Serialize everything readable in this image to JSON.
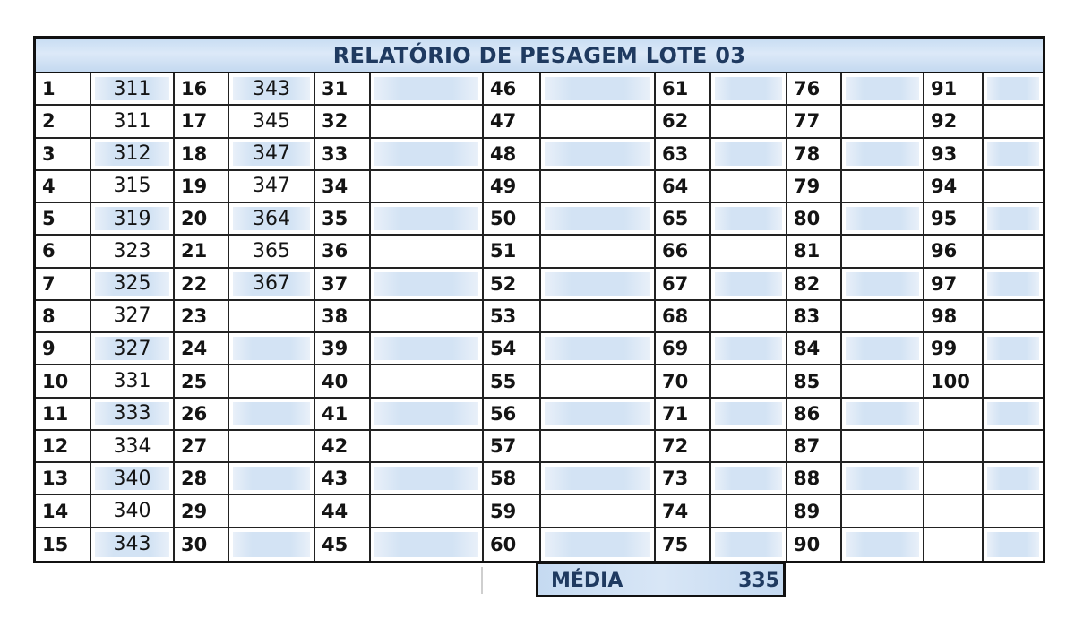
{
  "report": {
    "title": "RELATÓRIO DE PESAGEM LOTE 03",
    "columns_per_row": 7,
    "rows": 15,
    "entries": [
      {
        "n": "1",
        "w": "311"
      },
      {
        "n": "2",
        "w": "311"
      },
      {
        "n": "3",
        "w": "312"
      },
      {
        "n": "4",
        "w": "315"
      },
      {
        "n": "5",
        "w": "319"
      },
      {
        "n": "6",
        "w": "323"
      },
      {
        "n": "7",
        "w": "325"
      },
      {
        "n": "8",
        "w": "327"
      },
      {
        "n": "9",
        "w": "327"
      },
      {
        "n": "10",
        "w": "331"
      },
      {
        "n": "11",
        "w": "333"
      },
      {
        "n": "12",
        "w": "334"
      },
      {
        "n": "13",
        "w": "340"
      },
      {
        "n": "14",
        "w": "340"
      },
      {
        "n": "15",
        "w": "343"
      },
      {
        "n": "16",
        "w": "343"
      },
      {
        "n": "17",
        "w": "345"
      },
      {
        "n": "18",
        "w": "347"
      },
      {
        "n": "19",
        "w": "347"
      },
      {
        "n": "20",
        "w": "364"
      },
      {
        "n": "21",
        "w": "365"
      },
      {
        "n": "22",
        "w": "367"
      },
      {
        "n": "23",
        "w": ""
      },
      {
        "n": "24",
        "w": ""
      },
      {
        "n": "25",
        "w": ""
      },
      {
        "n": "26",
        "w": ""
      },
      {
        "n": "27",
        "w": ""
      },
      {
        "n": "28",
        "w": ""
      },
      {
        "n": "29",
        "w": ""
      },
      {
        "n": "30",
        "w": ""
      },
      {
        "n": "31",
        "w": ""
      },
      {
        "n": "32",
        "w": ""
      },
      {
        "n": "33",
        "w": ""
      },
      {
        "n": "34",
        "w": ""
      },
      {
        "n": "35",
        "w": ""
      },
      {
        "n": "36",
        "w": ""
      },
      {
        "n": "37",
        "w": ""
      },
      {
        "n": "38",
        "w": ""
      },
      {
        "n": "39",
        "w": ""
      },
      {
        "n": "40",
        "w": ""
      },
      {
        "n": "41",
        "w": ""
      },
      {
        "n": "42",
        "w": ""
      },
      {
        "n": "43",
        "w": ""
      },
      {
        "n": "44",
        "w": ""
      },
      {
        "n": "45",
        "w": ""
      },
      {
        "n": "46",
        "w": ""
      },
      {
        "n": "47",
        "w": ""
      },
      {
        "n": "48",
        "w": ""
      },
      {
        "n": "49",
        "w": ""
      },
      {
        "n": "50",
        "w": ""
      },
      {
        "n": "51",
        "w": ""
      },
      {
        "n": "52",
        "w": ""
      },
      {
        "n": "53",
        "w": ""
      },
      {
        "n": "54",
        "w": ""
      },
      {
        "n": "55",
        "w": ""
      },
      {
        "n": "56",
        "w": ""
      },
      {
        "n": "57",
        "w": ""
      },
      {
        "n": "58",
        "w": ""
      },
      {
        "n": "59",
        "w": ""
      },
      {
        "n": "60",
        "w": ""
      },
      {
        "n": "61",
        "w": ""
      },
      {
        "n": "62",
        "w": ""
      },
      {
        "n": "63",
        "w": ""
      },
      {
        "n": "64",
        "w": ""
      },
      {
        "n": "65",
        "w": ""
      },
      {
        "n": "66",
        "w": ""
      },
      {
        "n": "67",
        "w": ""
      },
      {
        "n": "68",
        "w": ""
      },
      {
        "n": "69",
        "w": ""
      },
      {
        "n": "70",
        "w": ""
      },
      {
        "n": "71",
        "w": ""
      },
      {
        "n": "72",
        "w": ""
      },
      {
        "n": "73",
        "w": ""
      },
      {
        "n": "74",
        "w": ""
      },
      {
        "n": "75",
        "w": ""
      },
      {
        "n": "76",
        "w": ""
      },
      {
        "n": "77",
        "w": ""
      },
      {
        "n": "78",
        "w": ""
      },
      {
        "n": "79",
        "w": ""
      },
      {
        "n": "80",
        "w": ""
      },
      {
        "n": "81",
        "w": ""
      },
      {
        "n": "82",
        "w": ""
      },
      {
        "n": "83",
        "w": ""
      },
      {
        "n": "84",
        "w": ""
      },
      {
        "n": "85",
        "w": ""
      },
      {
        "n": "86",
        "w": ""
      },
      {
        "n": "87",
        "w": ""
      },
      {
        "n": "88",
        "w": ""
      },
      {
        "n": "89",
        "w": ""
      },
      {
        "n": "90",
        "w": ""
      },
      {
        "n": "91",
        "w": ""
      },
      {
        "n": "92",
        "w": ""
      },
      {
        "n": "93",
        "w": ""
      },
      {
        "n": "94",
        "w": ""
      },
      {
        "n": "95",
        "w": ""
      },
      {
        "n": "96",
        "w": ""
      },
      {
        "n": "97",
        "w": ""
      },
      {
        "n": "98",
        "w": ""
      },
      {
        "n": "99",
        "w": ""
      },
      {
        "n": "100",
        "w": ""
      },
      {
        "n": "",
        "w": ""
      },
      {
        "n": "",
        "w": ""
      },
      {
        "n": "",
        "w": ""
      },
      {
        "n": "",
        "w": ""
      },
      {
        "n": "",
        "w": ""
      }
    ]
  },
  "summary": {
    "label": "MÉDIA",
    "value": "335"
  },
  "colors": {
    "header_fill": "#d3e3f4",
    "header_text": "#1f3a60",
    "row_shade": "#d3e3f4",
    "border": "#111111"
  }
}
